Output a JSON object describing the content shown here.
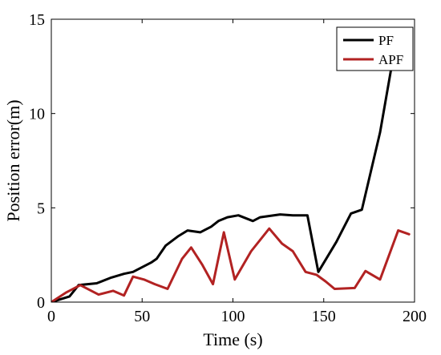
{
  "chart_data": {
    "type": "line",
    "title": "",
    "xlabel": "Time (s)",
    "ylabel": "Position error(m)",
    "xlim": [
      0,
      200
    ],
    "ylim": [
      0,
      15
    ],
    "xticks": [
      0,
      50,
      100,
      150,
      200
    ],
    "yticks": [
      0,
      5,
      10,
      15
    ],
    "grid": false,
    "legend_position": "top-right",
    "series": [
      {
        "name": "PF",
        "color": "#000000",
        "x": [
          0,
          10,
          15,
          25,
          33,
          40,
          45,
          55,
          58,
          63,
          70,
          75,
          82,
          88,
          92,
          97,
          103,
          111,
          115,
          126,
          133,
          141,
          147,
          157,
          165,
          171,
          181,
          191,
          197
        ],
        "y": [
          0,
          0.3,
          0.9,
          1.0,
          1.3,
          1.5,
          1.6,
          2.1,
          2.3,
          3.0,
          3.5,
          3.8,
          3.7,
          4.0,
          4.3,
          4.5,
          4.6,
          4.3,
          4.5,
          4.65,
          4.6,
          4.6,
          1.6,
          3.2,
          4.7,
          4.9,
          9.0,
          14.5,
          14.5
        ]
      },
      {
        "name": "APF",
        "color": "#b22222",
        "x": [
          0,
          8,
          16,
          26,
          34,
          40,
          45,
          51,
          57,
          64,
          72,
          77,
          83,
          89,
          95,
          101,
          110,
          120,
          127,
          133,
          140,
          146,
          151,
          156,
          167,
          173,
          181,
          191,
          197
        ],
        "y": [
          0,
          0.5,
          0.9,
          0.4,
          0.6,
          0.35,
          1.35,
          1.2,
          0.95,
          0.7,
          2.3,
          2.9,
          2.0,
          0.95,
          3.7,
          1.2,
          2.7,
          3.9,
          3.1,
          2.7,
          1.6,
          1.45,
          1.1,
          0.7,
          0.75,
          1.65,
          1.2,
          3.8,
          3.6
        ]
      }
    ]
  }
}
